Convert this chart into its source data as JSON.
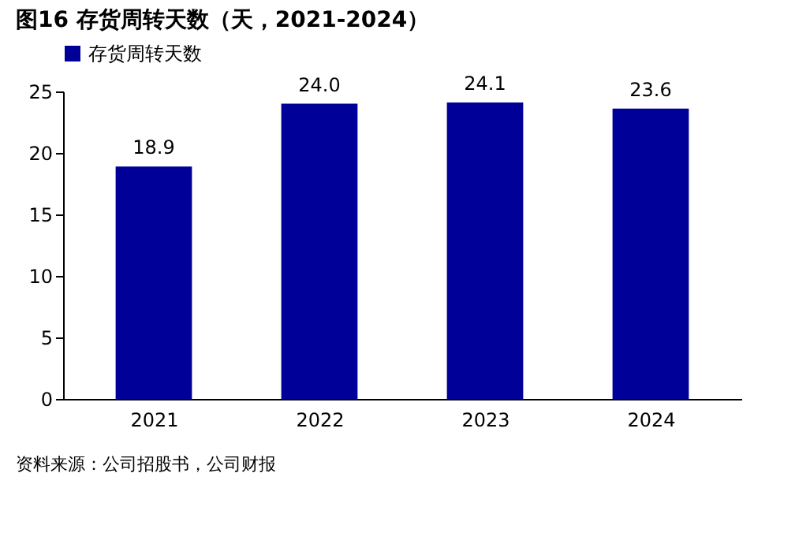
{
  "chart_data": {
    "type": "bar",
    "title": "图16  存货周转天数（天，2021-2024）",
    "categories": [
      "2021",
      "2022",
      "2023",
      "2024"
    ],
    "series": [
      {
        "name": "存货周转天数",
        "color": "#000099",
        "values": [
          18.9,
          24.0,
          24.1,
          23.6
        ]
      }
    ],
    "value_labels": [
      "18.9",
      "24.0",
      "24.1",
      "23.6"
    ],
    "ylim": [
      0,
      25
    ],
    "yticks": [
      0,
      5,
      10,
      15,
      20,
      25
    ],
    "grid": false,
    "legend": "top",
    "annotations": [
      "资料来源：公司招股书，公司财报"
    ]
  }
}
